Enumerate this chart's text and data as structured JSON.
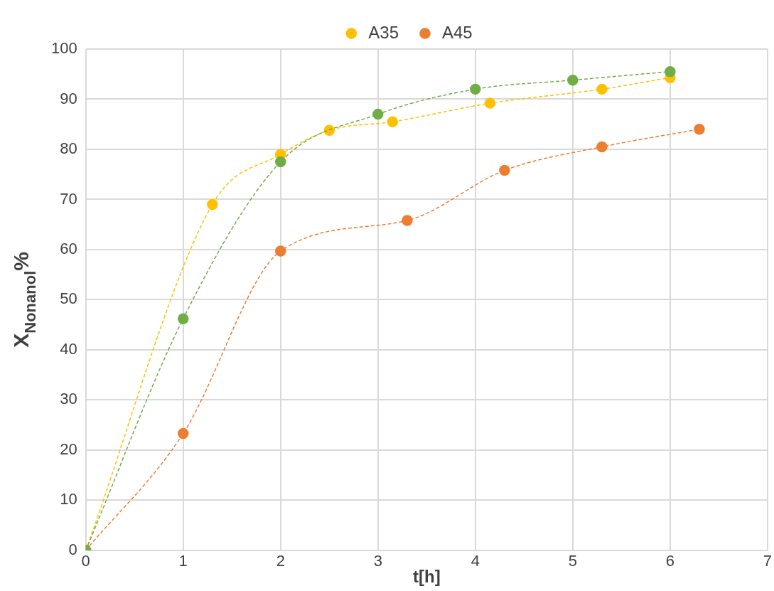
{
  "chart_data": {
    "type": "line",
    "xlabel": "t[h]",
    "ylabel": "X$_{Nonanol}$%",
    "xlim": [
      0,
      7
    ],
    "xticks": [
      0,
      1,
      2,
      3,
      4,
      5,
      6,
      7
    ],
    "ylim": [
      0,
      100
    ],
    "yticks": [
      0,
      10,
      20,
      30,
      40,
      50,
      60,
      70,
      80,
      90,
      100
    ],
    "grid": true,
    "legend": "top",
    "marker": "circle",
    "line_style": "dashed",
    "series": [
      {
        "color": "#70ad47",
        "x": [
          0,
          1,
          2,
          3,
          4,
          5,
          6
        ],
        "values": [
          0,
          46.2,
          77.5,
          87,
          92,
          93.8,
          95.5
        ]
      },
      {
        "name": "A35",
        "color": "#ffc000",
        "x": [
          0,
          1.3,
          2,
          2.5,
          3.15,
          4.15,
          5.3,
          6
        ],
        "values": [
          0,
          69,
          79,
          83.8,
          85.5,
          89.2,
          92,
          94.3
        ]
      },
      {
        "name": "A45",
        "color": "#ed7d31",
        "x": [
          0,
          1,
          2,
          3.3,
          4.3,
          5.3,
          6.3
        ],
        "values": [
          0,
          23.3,
          59.7,
          65.8,
          75.8,
          80.5,
          84
        ]
      }
    ]
  }
}
